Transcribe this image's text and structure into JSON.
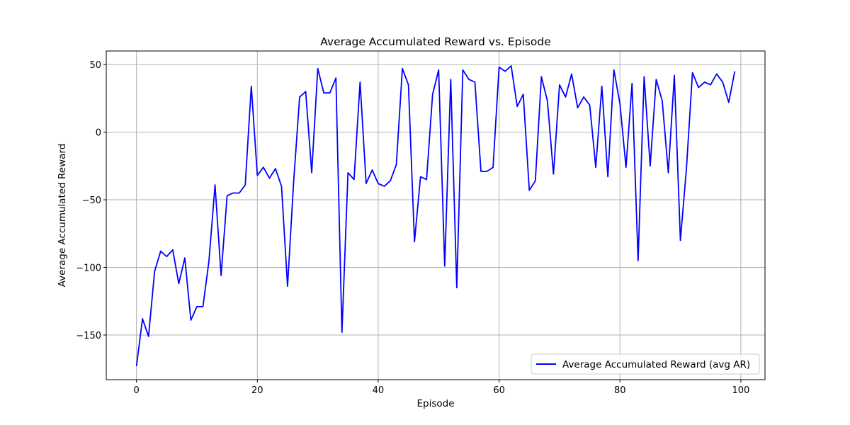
{
  "chart_data": {
    "type": "line",
    "title": "Average Accumulated Reward vs. Episode",
    "xlabel": "Episode",
    "ylabel": "Average Accumulated Reward",
    "xlim": [
      -5,
      104
    ],
    "ylim": [
      -183,
      60
    ],
    "xticks": [
      0,
      20,
      40,
      60,
      80,
      100
    ],
    "yticks": [
      -150,
      -100,
      -50,
      0,
      50
    ],
    "xtick_labels": [
      "0",
      "20",
      "40",
      "60",
      "80",
      "100"
    ],
    "ytick_labels": [
      "−150",
      "−100",
      "−50",
      "0",
      "50"
    ],
    "grid": true,
    "legend_position": "lower-right",
    "series": [
      {
        "name": "Average Accumulated Reward (avg AR)",
        "color": "#0000ff",
        "x": [
          0,
          1,
          2,
          3,
          4,
          5,
          6,
          7,
          8,
          9,
          10,
          11,
          12,
          13,
          14,
          15,
          16,
          17,
          18,
          19,
          20,
          21,
          22,
          23,
          24,
          25,
          26,
          27,
          28,
          29,
          30,
          31,
          32,
          33,
          34,
          35,
          36,
          37,
          38,
          39,
          40,
          41,
          42,
          43,
          44,
          45,
          46,
          47,
          48,
          49,
          50,
          51,
          52,
          53,
          54,
          55,
          56,
          57,
          58,
          59,
          60,
          61,
          62,
          63,
          64,
          65,
          66,
          67,
          68,
          69,
          70,
          71,
          72,
          73,
          74,
          75,
          76,
          77,
          78,
          79,
          80,
          81,
          82,
          83,
          84,
          85,
          86,
          87,
          88,
          89,
          90,
          91,
          92,
          93,
          94,
          95,
          96,
          97,
          98,
          99
        ],
        "values": [
          -173,
          -138,
          -151,
          -103,
          -88,
          -92,
          -87,
          -112,
          -93,
          -139,
          -129,
          -129,
          -95,
          -39,
          -106,
          -47,
          -45,
          -45,
          -39,
          34,
          -32,
          -26,
          -34,
          -27,
          -40,
          -114,
          -37,
          26,
          30,
          -30,
          47,
          29,
          29,
          40,
          -148,
          -30,
          -35,
          37,
          -38,
          -28,
          -38,
          -40,
          -36,
          -24,
          47,
          35,
          -81,
          -33,
          -35,
          28,
          46,
          -99,
          39,
          -115,
          46,
          39,
          37,
          -29,
          -29,
          -26,
          48,
          45,
          49,
          19,
          28,
          -43,
          -36,
          41,
          23,
          -31,
          35,
          26,
          43,
          18,
          26,
          20,
          -26,
          34,
          -33,
          46,
          21,
          -26,
          36,
          -95,
          41,
          -25,
          39,
          23,
          -30,
          42,
          -80,
          -27,
          44,
          33,
          37,
          35,
          43,
          37,
          22,
          45
        ]
      }
    ]
  }
}
